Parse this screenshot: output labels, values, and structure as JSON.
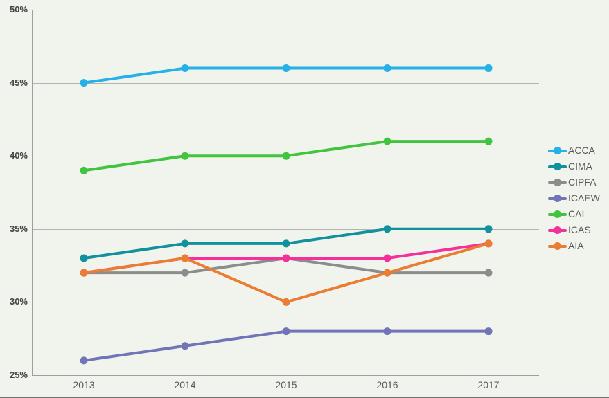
{
  "chart_data": {
    "type": "line",
    "title": "",
    "xlabel": "",
    "ylabel": "",
    "categories": [
      "2013",
      "2014",
      "2015",
      "2016",
      "2017"
    ],
    "ylim": [
      25,
      50
    ],
    "yticks": [
      50,
      45,
      40,
      35,
      30,
      25
    ],
    "ytick_labels": [
      "50%",
      "45%",
      "40%",
      "35%",
      "30%",
      "25%"
    ],
    "grid": true,
    "legend_position": "right",
    "series": [
      {
        "name": "ACCA",
        "color": "#25b0e8",
        "values": [
          45,
          46,
          46,
          46,
          46
        ]
      },
      {
        "name": "CIMA",
        "color": "#11909e",
        "values": [
          33,
          34,
          34,
          35,
          35
        ]
      },
      {
        "name": "CIPFA",
        "color": "#8c8c8c",
        "values": [
          32,
          32,
          33,
          32,
          32
        ]
      },
      {
        "name": "ICAEW",
        "color": "#7175b8",
        "values": [
          26,
          27,
          28,
          28,
          28
        ]
      },
      {
        "name": "CAI",
        "color": "#42c440",
        "values": [
          39,
          40,
          40,
          41,
          41
        ]
      },
      {
        "name": "ICAS",
        "color": "#f5309a",
        "values": [
          32,
          33,
          33,
          33,
          34
        ]
      },
      {
        "name": "AIA",
        "color": "#ea7d33",
        "values": [
          32,
          33,
          30,
          32,
          34
        ]
      }
    ]
  },
  "colors": {
    "background": "#f1f4ec",
    "gridline": "#b3b3b3",
    "axis": "#9e9e9e",
    "ytick_text": "#454545",
    "xtick_text": "#595959",
    "legend_text": "#58595b"
  }
}
